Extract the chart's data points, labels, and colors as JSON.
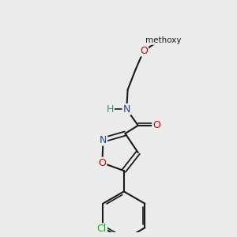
{
  "background_color": "#ebebeb",
  "bond_color": "#1a1a1a",
  "atom_colors": {
    "O": "#cc0000",
    "N": "#2244bb",
    "Cl": "#22aa22",
    "H": "#558877",
    "C": "#1a1a1a"
  },
  "figsize": [
    3.0,
    3.0
  ],
  "dpi": 100
}
